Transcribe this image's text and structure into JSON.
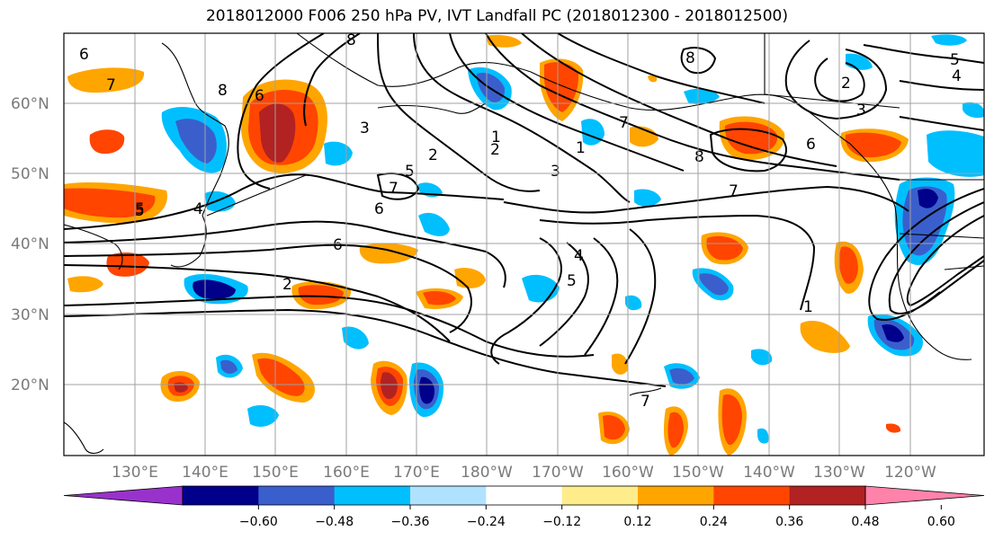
{
  "title": "2018012000 F006 250 hPa PV, IVT Landfall PC (2018012300 - 2018012500)",
  "latitude_labels": [
    "60°N",
    "50°N",
    "40°N",
    "30°N",
    "20°N"
  ],
  "longitude_labels": [
    "130°E",
    "140°E",
    "150°E",
    "160°E",
    "170°E",
    "180°W",
    "170°W",
    "160°W",
    "150°W",
    "140°W",
    "130°W",
    "120°W"
  ],
  "colorbar": {
    "ticks": [
      "−0.60",
      "−0.48",
      "−0.36",
      "−0.24",
      "−0.12",
      "0.12",
      "0.24",
      "0.36",
      "0.48",
      "0.60"
    ],
    "colors": [
      "#9932cc",
      "#00008b",
      "#3a5fcd",
      "#00bfff",
      "#b0e2ff",
      "#ffffff",
      "#ffec8b",
      "#ffa500",
      "#ff4500",
      "#b22222",
      "#ff82ab"
    ]
  },
  "contour_labels": [
    "6",
    "7",
    "8",
    "8",
    "8",
    "6",
    "5",
    "4",
    "3",
    "2",
    "5",
    "3",
    "2",
    "1",
    "7",
    "8",
    "5",
    "2",
    "7",
    "6",
    "5",
    "4",
    "6",
    "2",
    "7",
    "4",
    "5",
    "3",
    "1",
    "6",
    "7",
    "1"
  ]
}
